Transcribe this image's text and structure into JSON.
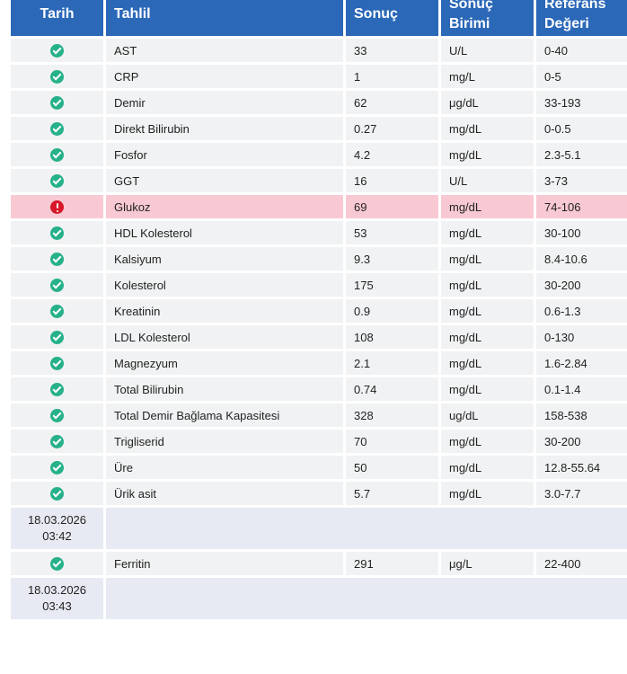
{
  "headers": {
    "date": "Tarih",
    "test": "Tahlil",
    "result": "Sonuç",
    "unit_line1": "Sonuç",
    "unit_line2": "Birimi",
    "ref_line1": "Referans",
    "ref_line2": "Değeri"
  },
  "rows": [
    {
      "status": "check-circle-icon",
      "test": "AST",
      "result": "33",
      "unit": "U/L",
      "ref": "0-40"
    },
    {
      "status": "check-circle-icon",
      "test": "CRP",
      "result": "1",
      "unit": "mg/L",
      "ref": "0-5"
    },
    {
      "status": "check-circle-icon",
      "test": "Demir",
      "result": "62",
      "unit": "μg/dL",
      "ref": "33-193"
    },
    {
      "status": "check-circle-icon",
      "test": "Direkt Bilirubin",
      "result": "0.27",
      "unit": "mg/dL",
      "ref": "0-0.5"
    },
    {
      "status": "check-circle-icon",
      "test": "Fosfor",
      "result": "4.2",
      "unit": "mg/dL",
      "ref": "2.3-5.1"
    },
    {
      "status": "check-circle-icon",
      "test": "GGT",
      "result": "16",
      "unit": "U/L",
      "ref": "3-73"
    },
    {
      "status": "alert-circle-icon",
      "test": "Glukoz",
      "result": "69",
      "unit": "mg/dL",
      "ref": "74-106"
    },
    {
      "status": "check-circle-icon",
      "test": "HDL Kolesterol",
      "result": "53",
      "unit": "mg/dL",
      "ref": "30-100"
    },
    {
      "status": "check-circle-icon",
      "test": "Kalsiyum",
      "result": "9.3",
      "unit": "mg/dL",
      "ref": "8.4-10.6"
    },
    {
      "status": "check-circle-icon",
      "test": "Kolesterol",
      "result": "175",
      "unit": "mg/dL",
      "ref": "30-200"
    },
    {
      "status": "check-circle-icon",
      "test": "Kreatinin",
      "result": "0.9",
      "unit": "mg/dL",
      "ref": "0.6-1.3"
    },
    {
      "status": "check-circle-icon",
      "test": "LDL Kolesterol",
      "result": "108",
      "unit": "mg/dL",
      "ref": "0-130"
    },
    {
      "status": "check-circle-icon",
      "test": "Magnezyum",
      "result": "2.1",
      "unit": "mg/dL",
      "ref": "1.6-2.84"
    },
    {
      "status": "check-circle-icon",
      "test": "Total Bilirubin",
      "result": "0.74",
      "unit": "mg/dL",
      "ref": "0.1-1.4"
    },
    {
      "status": "check-circle-icon",
      "test": "Total Demir Bağlama Kapasitesi",
      "result": "328",
      "unit": "ug/dL",
      "ref": "158-538"
    },
    {
      "status": "check-circle-icon",
      "test": "Trigliserid",
      "result": "70",
      "unit": "mg/dL",
      "ref": "30-200"
    },
    {
      "status": "check-circle-icon",
      "test": "Üre",
      "result": "50",
      "unit": "mg/dL",
      "ref": "12.8-55.64"
    },
    {
      "status": "check-circle-icon",
      "test": "Ürik asit",
      "result": "5.7",
      "unit": "mg/dL",
      "ref": "3.0-7.7"
    }
  ],
  "group2": {
    "date": "18.03.2026",
    "time": "03:42",
    "row": {
      "status": "check-circle-icon",
      "test": "Ferritin",
      "result": "291",
      "unit": "μg/L",
      "ref": "22-400"
    }
  },
  "group3": {
    "date": "18.03.2026",
    "time": "03:43"
  },
  "colors": {
    "header": "#2b68b8",
    "row": "#f1f2f3",
    "abnormal_row": "#f8c9d3",
    "date_row": "#e7eaf2",
    "ok_icon": "#26b18a",
    "alert_icon": "#d7182a"
  }
}
